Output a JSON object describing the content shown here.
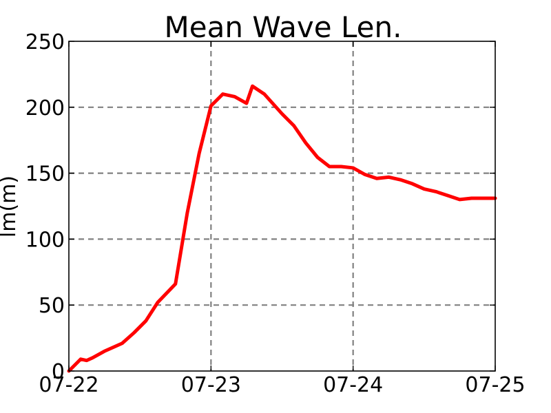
{
  "chart_data": {
    "type": "line",
    "title": "Mean Wave Len.",
    "xlabel": "",
    "ylabel": "lm(m)",
    "x_tick_labels": [
      "07-22",
      "07-23",
      "07-24",
      "07-25"
    ],
    "y_ticks": [
      0,
      50,
      100,
      150,
      200,
      250
    ],
    "ylim": [
      0,
      250
    ],
    "xlim": [
      "07-22 00:00",
      "07-25 00:00"
    ],
    "grid": true,
    "legend": "none",
    "series": [
      {
        "color": "#ff0000",
        "x": [
          "07-22 00:00",
          "07-22 02:00",
          "07-22 03:00",
          "07-22 04:00",
          "07-22 06:00",
          "07-22 09:00",
          "07-22 11:00",
          "07-22 13:00",
          "07-22 15:00",
          "07-22 18:00",
          "07-22 20:00",
          "07-22 22:00",
          "07-23 00:00",
          "07-23 02:00",
          "07-23 04:00",
          "07-23 06:00",
          "07-23 07:00",
          "07-23 09:00",
          "07-23 12:00",
          "07-23 14:00",
          "07-23 16:00",
          "07-23 18:00",
          "07-23 20:00",
          "07-23 22:00",
          "07-24 00:00",
          "07-24 02:00",
          "07-24 04:00",
          "07-24 06:00",
          "07-24 08:00",
          "07-24 10:00",
          "07-24 12:00",
          "07-24 14:00",
          "07-24 16:00",
          "07-24 18:00",
          "07-24 20:00",
          "07-24 22:00",
          "07-25 00:00"
        ],
        "y": [
          0,
          9,
          8,
          10,
          15,
          21,
          29,
          38,
          52,
          66,
          120,
          165,
          201,
          210,
          208,
          203,
          216,
          210,
          195,
          186,
          173,
          162,
          155,
          155,
          154,
          149,
          146,
          147,
          145,
          142,
          138,
          136,
          133,
          130,
          131,
          131,
          131
        ]
      }
    ]
  }
}
